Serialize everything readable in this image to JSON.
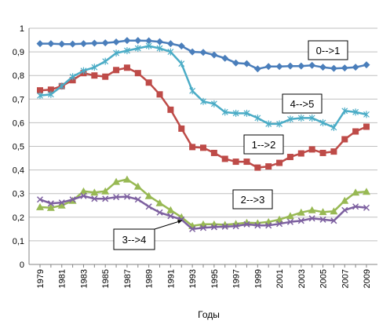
{
  "chart_data": {
    "type": "line",
    "xlabel": "Годы",
    "ylabel": "",
    "xlim": [
      1979,
      2009
    ],
    "ylim": [
      0,
      1
    ],
    "y_ticks": [
      0,
      0.1,
      0.2,
      0.3,
      0.4,
      0.5,
      0.6,
      0.7,
      0.8,
      0.9,
      1
    ],
    "y_tick_labels": [
      "0",
      "0,1",
      "0,2",
      "0,3",
      "0,4",
      "0,5",
      "0,6",
      "0,7",
      "0,8",
      "0,9",
      "1"
    ],
    "x_tick_labels": [
      "1979",
      "1981",
      "1983",
      "1985",
      "1987",
      "1989",
      "1991",
      "1993",
      "1995",
      "1997",
      "1999",
      "2001",
      "2003",
      "2005",
      "2007",
      "2009"
    ],
    "grid": "horizontal",
    "x": [
      1979,
      1980,
      1981,
      1982,
      1983,
      1984,
      1985,
      1986,
      1987,
      1988,
      1989,
      1990,
      1991,
      1992,
      1993,
      1994,
      1995,
      1996,
      1997,
      1998,
      1999,
      2000,
      2001,
      2002,
      2003,
      2004,
      2005,
      2006,
      2007,
      2008,
      2009
    ],
    "series": [
      {
        "name": "0-->1",
        "color": "#4a7ebb",
        "marker": "diamond",
        "values": [
          0.935,
          0.935,
          0.933,
          0.933,
          0.935,
          0.937,
          0.938,
          0.942,
          0.948,
          0.948,
          0.947,
          0.943,
          0.935,
          0.925,
          0.9,
          0.898,
          0.887,
          0.873,
          0.853,
          0.85,
          0.828,
          0.838,
          0.838,
          0.84,
          0.84,
          0.843,
          0.835,
          0.83,
          0.832,
          0.835,
          0.845
        ]
      },
      {
        "name": "1-->2",
        "color": "#be4b48",
        "marker": "square",
        "values": [
          0.737,
          0.74,
          0.755,
          0.78,
          0.81,
          0.8,
          0.795,
          0.823,
          0.833,
          0.81,
          0.77,
          0.72,
          0.655,
          0.575,
          0.497,
          0.494,
          0.472,
          0.447,
          0.435,
          0.435,
          0.41,
          0.415,
          0.43,
          0.455,
          0.47,
          0.487,
          0.472,
          0.478,
          0.53,
          0.563,
          0.583
        ]
      },
      {
        "name": "2-->3",
        "color": "#98b954",
        "marker": "triangle",
        "values": [
          0.243,
          0.24,
          0.25,
          0.27,
          0.31,
          0.305,
          0.31,
          0.35,
          0.36,
          0.33,
          0.29,
          0.26,
          0.23,
          0.2,
          0.163,
          0.17,
          0.17,
          0.168,
          0.172,
          0.177,
          0.175,
          0.18,
          0.19,
          0.205,
          0.22,
          0.23,
          0.222,
          0.225,
          0.27,
          0.305,
          0.308
        ]
      },
      {
        "name": "3-->4",
        "color": "#7d60a0",
        "marker": "cross",
        "values": [
          0.275,
          0.258,
          0.262,
          0.275,
          0.29,
          0.278,
          0.278,
          0.285,
          0.287,
          0.275,
          0.245,
          0.22,
          0.205,
          0.19,
          0.15,
          0.155,
          0.158,
          0.16,
          0.162,
          0.17,
          0.165,
          0.165,
          0.172,
          0.18,
          0.185,
          0.195,
          0.19,
          0.185,
          0.23,
          0.245,
          0.24
        ]
      },
      {
        "name": "4-->5",
        "color": "#4bacc6",
        "marker": "star",
        "values": [
          0.715,
          0.72,
          0.755,
          0.795,
          0.82,
          0.835,
          0.86,
          0.895,
          0.905,
          0.915,
          0.925,
          0.915,
          0.9,
          0.85,
          0.735,
          0.69,
          0.68,
          0.645,
          0.64,
          0.64,
          0.62,
          0.595,
          0.595,
          0.615,
          0.62,
          0.62,
          0.6,
          0.58,
          0.65,
          0.645,
          0.635
        ]
      }
    ],
    "annotations": [
      {
        "text": "0-->1",
        "series": "0-->1"
      },
      {
        "text": "4-->5",
        "series": "4-->5"
      },
      {
        "text": "1-->2",
        "series": "1-->2"
      },
      {
        "text": "2-->3",
        "series": "2-->3"
      },
      {
        "text": "3-->4",
        "series": "3-->4"
      }
    ]
  }
}
